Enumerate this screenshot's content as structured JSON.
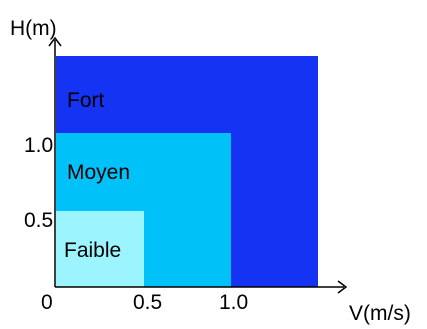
{
  "axes": {
    "y_label": "H(m)",
    "x_label": "V(m/s)",
    "origin_label": "0",
    "x_ticks": [
      "0.5",
      "1.0"
    ],
    "y_ticks": [
      "0.5",
      "1.0"
    ]
  },
  "zones": [
    {
      "id": "fort",
      "label": "Fort",
      "color": "#1533f2"
    },
    {
      "id": "moyen",
      "label": "Moyen",
      "color": "#00c2f8"
    },
    {
      "id": "faible",
      "label": "Faible",
      "color": "#9cf4ff"
    }
  ],
  "colors": {
    "axis": "#000000"
  }
}
